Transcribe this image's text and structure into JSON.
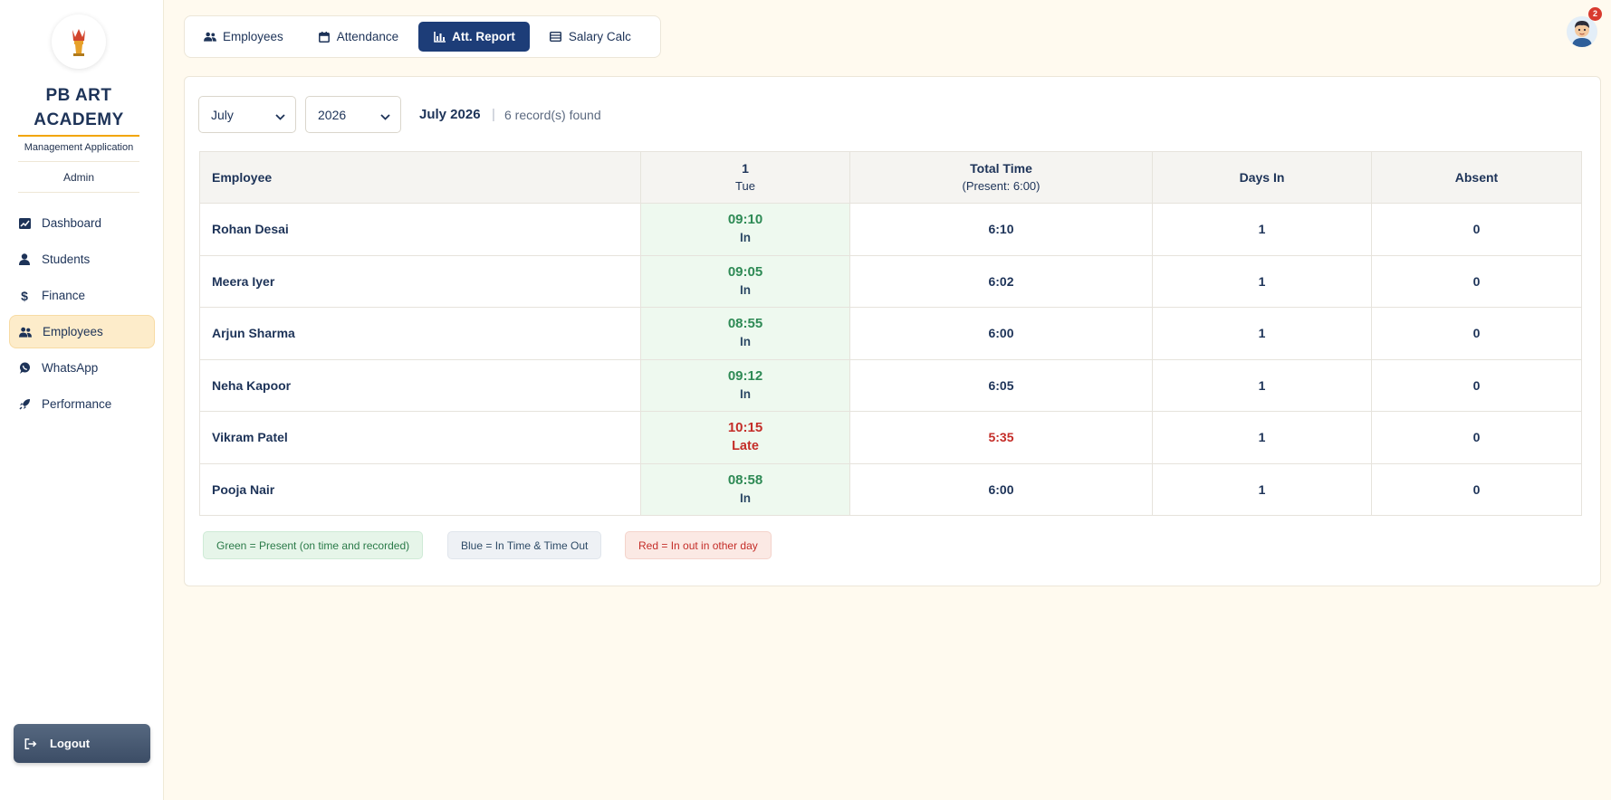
{
  "sidebar": {
    "brand_line1": "PB ART",
    "brand_line2": "ACADEMY",
    "subtitle": "Management Application",
    "role": "Admin",
    "items": [
      {
        "label": "Dashboard",
        "icon": "chart-icon"
      },
      {
        "label": "Students",
        "icon": "user-icon"
      },
      {
        "label": "Finance",
        "icon": "dollar-icon"
      },
      {
        "label": "Employees",
        "icon": "users-icon",
        "active": true
      },
      {
        "label": "WhatsApp",
        "icon": "whatsapp-icon"
      },
      {
        "label": "Performance",
        "icon": "rocket-icon"
      }
    ],
    "logout_label": "Logout"
  },
  "tabs": [
    {
      "label": "Employees",
      "icon": "users-icon"
    },
    {
      "label": "Attendance",
      "icon": "calendar-icon"
    },
    {
      "label": "Att. Report",
      "icon": "bar-chart-icon",
      "active": true
    },
    {
      "label": "Salary Calc",
      "icon": "list-icon"
    }
  ],
  "notifications": {
    "count": "2"
  },
  "filters": {
    "month": "July",
    "year": "2026",
    "period_label": "July 2026",
    "separator": "|",
    "records_label": "6 record(s) found"
  },
  "table": {
    "headers": {
      "employee": "Employee",
      "day_number": "1",
      "day_name": "Tue",
      "total_time": "Total Time",
      "total_time_sub": "(Present: 6:00)",
      "days_in": "Days In",
      "absent": "Absent"
    },
    "rows": [
      {
        "name": "Rohan Desai",
        "time": "09:10",
        "status": "In",
        "total": "6:10",
        "days_in": "1",
        "absent": "0"
      },
      {
        "name": "Meera Iyer",
        "time": "09:05",
        "status": "In",
        "total": "6:02",
        "days_in": "1",
        "absent": "0"
      },
      {
        "name": "Arjun Sharma",
        "time": "08:55",
        "status": "In",
        "total": "6:00",
        "days_in": "1",
        "absent": "0"
      },
      {
        "name": "Neha Kapoor",
        "time": "09:12",
        "status": "In",
        "total": "6:05",
        "days_in": "1",
        "absent": "0"
      },
      {
        "name": "Vikram Patel",
        "time": "10:15",
        "status": "Late",
        "total": "5:35",
        "days_in": "1",
        "absent": "0"
      },
      {
        "name": "Pooja Nair",
        "time": "08:58",
        "status": "In",
        "total": "6:00",
        "days_in": "1",
        "absent": "0"
      }
    ]
  },
  "legend": {
    "green": "Green = Present (on time and recorded)",
    "blue": "Blue = In Time & Time Out",
    "red": "Red = In out in other day"
  },
  "colors": {
    "accent": "#1d3d78",
    "present": "#2e8a55",
    "late": "#c42d28",
    "active_nav": "#fdecca"
  }
}
